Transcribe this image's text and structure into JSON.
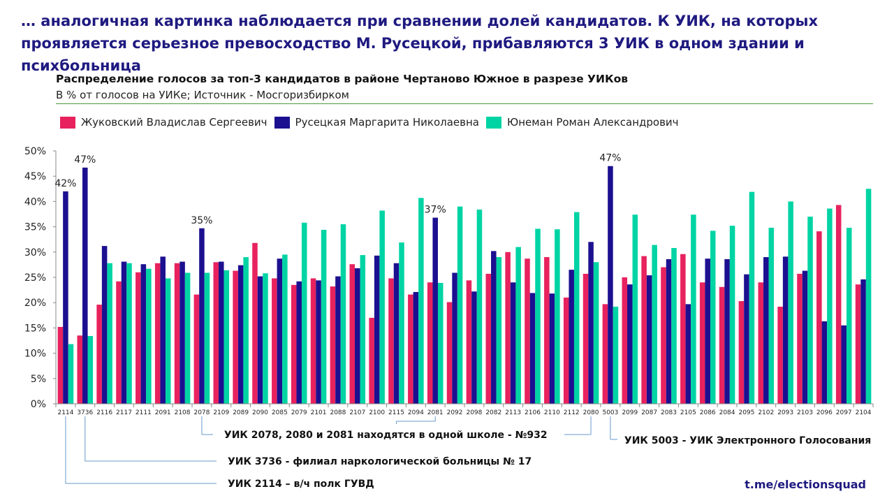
{
  "headline": "… аналогичная картинка наблюдается при сравнении долей кандидатов. К УИК, на которых проявляется серьезное превосходство М. Русецкой, прибавляются 3 УИК в одном здании и психбольница",
  "footer": "t.me/electionsquad",
  "colors": {
    "headline": "#1f1a80",
    "series": [
      "#e8225e",
      "#1c1090",
      "#00d4a4"
    ],
    "callout_line": "#6699cc",
    "rule": "#4a9a3a"
  },
  "chart_data": {
    "type": "bar",
    "title": "Распределение голосов за топ-3 кандидатов в районе Чертаново Южное в разрезе УИКов",
    "subtitle": "В % от голосов на УИКе; Источник - Мосгоризбирком",
    "xlabel": "",
    "ylabel": "",
    "ylim": [
      0,
      50
    ],
    "yticks": [
      "0%",
      "5%",
      "10%",
      "15%",
      "20%",
      "25%",
      "30%",
      "35%",
      "40%",
      "45%",
      "50%"
    ],
    "grid": false,
    "legend_position": "top-left",
    "categories": [
      "2114",
      "3736",
      "2116",
      "2117",
      "2111",
      "2091",
      "2108",
      "2078",
      "2109",
      "2089",
      "2090",
      "2085",
      "2079",
      "2101",
      "2088",
      "2107",
      "2100",
      "2115",
      "2094",
      "2081",
      "2092",
      "2098",
      "2082",
      "2113",
      "2106",
      "2110",
      "2112",
      "2080",
      "5003",
      "2099",
      "2087",
      "2083",
      "2105",
      "2086",
      "2084",
      "2095",
      "2102",
      "2093",
      "2103",
      "2096",
      "2097",
      "2104"
    ],
    "series": [
      {
        "name": "Жуковский Владислав Сергеевич",
        "values": [
          15.2,
          13.5,
          19.6,
          24.2,
          26.0,
          27.8,
          27.8,
          21.6,
          28.0,
          26.3,
          31.8,
          24.8,
          23.5,
          24.8,
          23.2,
          27.6,
          17.0,
          24.8,
          21.6,
          24.0,
          20.1,
          24.4,
          25.7,
          30.0,
          28.7,
          29.0,
          21.0,
          25.7,
          19.7,
          25.0,
          29.2,
          27.0,
          29.6,
          24.0,
          23.1,
          20.3,
          24.0,
          19.2,
          25.7,
          34.1,
          39.3,
          23.6
        ]
      },
      {
        "name": "Русецкая Маргарита Николаевна",
        "values": [
          42.0,
          46.7,
          31.2,
          28.1,
          27.6,
          29.1,
          28.1,
          34.7,
          28.1,
          27.4,
          25.2,
          28.7,
          24.2,
          24.4,
          25.2,
          26.8,
          29.3,
          27.8,
          22.1,
          36.8,
          25.9,
          22.2,
          30.2,
          24.0,
          21.9,
          21.8,
          26.5,
          32.0,
          47.0,
          23.6,
          25.4,
          28.6,
          19.7,
          28.7,
          28.6,
          25.6,
          29.0,
          29.1,
          26.3,
          16.3,
          15.5,
          24.6
        ]
      },
      {
        "name": "Юнеман Роман Александрович",
        "values": [
          11.8,
          13.4,
          27.8,
          27.8,
          26.7,
          24.8,
          25.9,
          25.9,
          26.4,
          29.0,
          25.8,
          29.5,
          35.8,
          34.4,
          35.5,
          29.4,
          38.2,
          31.9,
          40.7,
          23.9,
          39.0,
          38.4,
          29.0,
          31.0,
          34.6,
          34.5,
          37.9,
          28.0,
          19.2,
          37.4,
          31.4,
          30.8,
          37.4,
          34.2,
          35.2,
          41.9,
          34.8,
          40.0,
          37.0,
          38.6,
          34.8,
          42.5
        ]
      }
    ],
    "data_labels": [
      {
        "category": "2114",
        "series": 1,
        "text": "42%"
      },
      {
        "category": "3736",
        "series": 1,
        "text": "47%"
      },
      {
        "category": "2078",
        "series": 1,
        "text": "35%"
      },
      {
        "category": "2081",
        "series": 1,
        "text": "37%"
      },
      {
        "category": "5003",
        "series": 1,
        "text": "47%"
      }
    ],
    "annotations": [
      {
        "text": "УИК 2078, 2080 и 2081 находятся в одной школе - №932",
        "categories": [
          "2078",
          "2080",
          "2081"
        ]
      },
      {
        "text": "УИК 5003 - УИК Электронного Голосования",
        "categories": [
          "5003"
        ]
      },
      {
        "text": "УИК 3736 - филиал наркологической больницы № 17",
        "categories": [
          "3736"
        ]
      },
      {
        "text": "УИК 2114 – в/ч полк ГУВД",
        "categories": [
          "2114"
        ]
      }
    ]
  }
}
